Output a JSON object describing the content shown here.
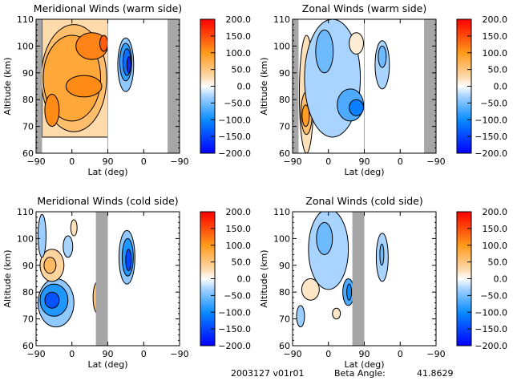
{
  "footer": {
    "date_version": "2003127 v01r01",
    "beta_label": "Beta Angle:",
    "beta_value": "41.8629"
  },
  "chart_data": [
    {
      "type": "heatmap",
      "subtype": "filled-contour",
      "title": "Meridional Winds (warm side)",
      "xlabel": "Lat (deg)",
      "ylabel": "Altitude (km)",
      "x_tick_labels": [
        "-90",
        "0",
        "90",
        "0",
        "-90"
      ],
      "y_ticks": [
        60,
        70,
        80,
        90,
        100,
        110
      ],
      "ylim": [
        60,
        110
      ],
      "colorbar": {
        "range": [
          -200,
          200
        ],
        "tick_labels": [
          "200.0",
          "150.0",
          "100.0",
          "50.0",
          "0.0",
          "-50.0",
          "-100.0",
          "-150.0",
          "-200.0"
        ]
      },
      "no_data_lat_regions": [
        "-90 to -60 (left edge)",
        "-60 to -90 (right edge)"
      ],
      "features": [
        {
          "region": "lat -60 to 90 (first half)",
          "altitude": "66-110 km",
          "value_range": [
            50,
            150
          ],
          "sign": "positive",
          "peak": "~150 near 100-103 km, lat 40-90"
        },
        {
          "region": "second half lat ~0",
          "altitude": "83-103 km",
          "value_range": [
            -150,
            -50
          ],
          "sign": "negative",
          "peak": "~-150 near 93-96 km"
        }
      ]
    },
    {
      "type": "heatmap",
      "subtype": "filled-contour",
      "title": "Zonal Winds (warm side)",
      "xlabel": "Lat (deg)",
      "ylabel": "Altitude (km)",
      "x_tick_labels": [
        "-90",
        "0",
        "90",
        "0",
        "-90"
      ],
      "y_ticks": [
        60,
        70,
        80,
        90,
        100,
        110
      ],
      "ylim": [
        60,
        110
      ],
      "colorbar": {
        "range": [
          -200,
          200
        ],
        "tick_labels": [
          "200.0",
          "150.0",
          "100.0",
          "50.0",
          "0.0",
          "-50.0",
          "-100.0",
          "-150.0",
          "-200.0"
        ]
      },
      "no_data_lat_regions": [
        "-90 to -60 (left edge)",
        "-60 to -90 (right edge)"
      ],
      "features": [
        {
          "region": "lat -60 to -20",
          "altitude": "67-107 km",
          "value_range": [
            25,
            100
          ],
          "sign": "positive",
          "peak": "~100 near 73-75 km"
        },
        {
          "region": "lat -20 to 90",
          "altitude": "65-110 km",
          "value_range": [
            -125,
            -25
          ],
          "sign": "negative",
          "peak": "~-125 near 75-78 km, lat 60-90"
        },
        {
          "region": "lat 60-90",
          "altitude": "98-105 km",
          "value_range": [
            0,
            25
          ],
          "sign": "positive"
        },
        {
          "region": "second half lat ~0",
          "altitude": "84-102 km",
          "value_range": [
            -60,
            -25
          ],
          "sign": "negative"
        }
      ]
    },
    {
      "type": "heatmap",
      "subtype": "filled-contour",
      "title": "Meridional Winds (cold side)",
      "xlabel": "Lat (deg)",
      "ylabel": "Altitude (km)",
      "x_tick_labels": [
        "-90",
        "0",
        "90",
        "0",
        "-90"
      ],
      "y_ticks": [
        60,
        70,
        80,
        90,
        100,
        110
      ],
      "ylim": [
        60,
        110
      ],
      "colorbar": {
        "range": [
          -200,
          200
        ],
        "tick_labels": [
          "200.0",
          "150.0",
          "100.0",
          "50.0",
          "0.0",
          "-50.0",
          "-100.0",
          "-150.0",
          "-200.0"
        ]
      },
      "no_data_lat_regions": [
        "60 to 120 (first half, right)"
      ],
      "features": [
        {
          "region": "lat -70 to 30",
          "altitude": "65-83 km",
          "value_range": [
            -150,
            -25
          ],
          "sign": "negative",
          "peak": "~-150 near 77 km, lat -30"
        },
        {
          "region": "lat -60 to 60",
          "altitude": "73-93 km",
          "value_range": [
            25,
            100
          ],
          "sign": "positive",
          "peak": "~100 near 77 km, lat 55"
        },
        {
          "region": "second half lat ~0",
          "altitude": "83-102 km",
          "value_range": [
            -150,
            -25
          ],
          "sign": "negative",
          "peak": "~-150 near 92 km"
        }
      ]
    },
    {
      "type": "heatmap",
      "subtype": "filled-contour",
      "title": "Zonal Winds (cold side)",
      "xlabel": "Lat (deg)",
      "ylabel": "Altitude (km)",
      "x_tick_labels": [
        "-90",
        "0",
        "90",
        "0",
        "-90"
      ],
      "y_ticks": [
        60,
        70,
        80,
        90,
        100,
        110
      ],
      "ylim": [
        60,
        110
      ],
      "colorbar": {
        "range": [
          -200,
          200
        ],
        "tick_labels": [
          "200.0",
          "150.0",
          "100.0",
          "50.0",
          "0.0",
          "-50.0",
          "-100.0",
          "-150.0",
          "-200.0"
        ]
      },
      "no_data_lat_regions": [
        "60 to 120 (first half, right)"
      ],
      "features": [
        {
          "region": "lat -50 to 50",
          "altitude": "73-110 km",
          "value_range": [
            -100,
            -25
          ],
          "sign": "negative",
          "peak": "~-100 near 80 km, lat 45"
        },
        {
          "region": "lat -60 to -20",
          "altitude": "77-85 km",
          "value_range": [
            0,
            25
          ],
          "sign": "positive"
        },
        {
          "region": "lat -70 to -55",
          "altitude": "65-74 km",
          "value_range": [
            -50,
            -25
          ],
          "sign": "negative"
        },
        {
          "region": "second half lat ~0",
          "altitude": "84-102 km",
          "value_range": [
            -60,
            -25
          ],
          "sign": "negative"
        }
      ]
    }
  ]
}
